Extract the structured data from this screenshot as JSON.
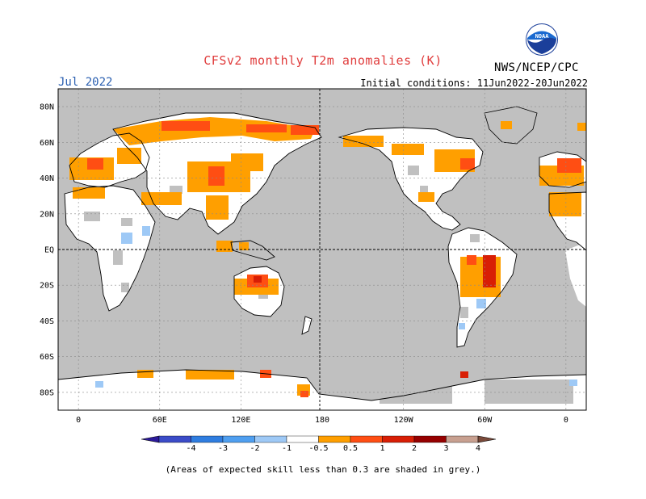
{
  "header": {
    "title": "CFSv2 monthly T2m anomalies (K)",
    "agency": "NWS/NCEP/CPC",
    "logo_text": "NOAA",
    "valid_month": "Jul 2022",
    "initial_conditions": "Initial conditions: 11Jun2022-20Jun2022"
  },
  "map": {
    "lat_labels": [
      "80N",
      "60N",
      "40N",
      "20N",
      "EQ",
      "20S",
      "40S",
      "60S",
      "80S"
    ],
    "lat_values": [
      80,
      60,
      40,
      20,
      0,
      -20,
      -40,
      -60,
      -80
    ],
    "lon_labels": [
      "0",
      "60E",
      "120E",
      "180",
      "120W",
      "60W",
      "0"
    ],
    "lon_values": [
      0,
      60,
      120,
      180,
      240,
      300,
      360
    ],
    "colors": {
      "ocean_grey": "#c0c0c0",
      "land_white": "#ffffff"
    }
  },
  "colorbar": {
    "tick_labels": [
      "-4",
      "-3",
      "-2",
      "-1",
      "-0.5",
      "0.5",
      "1",
      "2",
      "3",
      "4"
    ],
    "colors": [
      "#2b1a9a",
      "#3b4cc8",
      "#2f7de0",
      "#4f9ff0",
      "#9ec9f6",
      "#ffffff",
      "#ff9f00",
      "#ff4e13",
      "#d81e05",
      "#960000",
      "#c8a090",
      "#7a4a3a"
    ]
  },
  "footnote": "(Areas of expected skill less than 0.3 are shaded in grey.)"
}
